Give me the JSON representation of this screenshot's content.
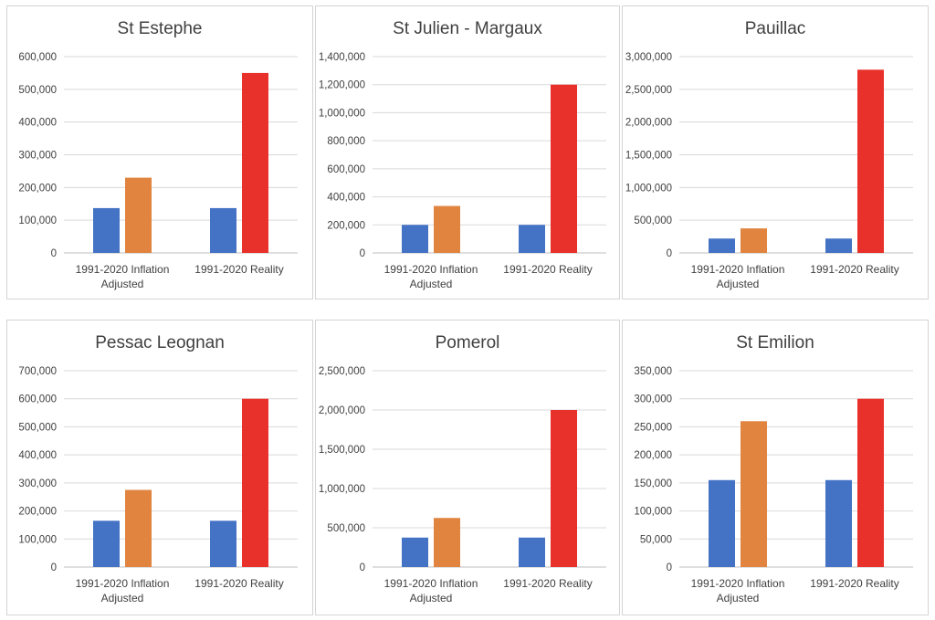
{
  "chart_data": [
    {
      "type": "bar",
      "title": "St Estephe",
      "categories": [
        "1991-2020 Inflation Adjusted",
        "1991-2020 Reality"
      ],
      "category_lines": [
        [
          "1991-2020 Inflation",
          "Adjusted"
        ],
        [
          "1991-2020 Reality"
        ]
      ],
      "ylim": [
        0,
        600000
      ],
      "ytick_step": 100000,
      "yticks": [
        "0",
        "100,000",
        "200,000",
        "300,000",
        "400,000",
        "500,000",
        "600,000"
      ],
      "bars": [
        [
          137000,
          230000
        ],
        [
          137000,
          550000
        ]
      ]
    },
    {
      "type": "bar",
      "title": "St Julien - Margaux",
      "categories": [
        "1991-2020 Inflation Adjusted",
        "1991-2020 Reality"
      ],
      "category_lines": [
        [
          "1991-2020 Inflation",
          "Adjusted"
        ],
        [
          "1991-2020 Reality"
        ]
      ],
      "ylim": [
        0,
        1400000
      ],
      "ytick_step": 200000,
      "yticks": [
        "0",
        "200,000",
        "400,000",
        "600,000",
        "800,000",
        "1,000,000",
        "1,200,000",
        "1,400,000"
      ],
      "bars": [
        [
          200000,
          335000
        ],
        [
          200000,
          1200000
        ]
      ]
    },
    {
      "type": "bar",
      "title": "Pauillac",
      "categories": [
        "1991-2020 Inflation Adjusted",
        "1991-2020 Reality"
      ],
      "category_lines": [
        [
          "1991-2020 Inflation",
          "Adjusted"
        ],
        [
          "1991-2020 Reality"
        ]
      ],
      "ylim": [
        0,
        3000000
      ],
      "ytick_step": 500000,
      "yticks": [
        "0",
        "500,000",
        "1,000,000",
        "1,500,000",
        "2,000,000",
        "2,500,000",
        "3,000,000"
      ],
      "bars": [
        [
          220000,
          375000
        ],
        [
          220000,
          2800000
        ]
      ]
    },
    {
      "type": "bar",
      "title": "Pessac Leognan",
      "categories": [
        "1991-2020 Inflation Adjusted",
        "1991-2020 Reality"
      ],
      "category_lines": [
        [
          "1991-2020 Inflation",
          "Adjusted"
        ],
        [
          "1991-2020 Reality"
        ]
      ],
      "ylim": [
        0,
        700000
      ],
      "ytick_step": 100000,
      "yticks": [
        "0",
        "100,000",
        "200,000",
        "300,000",
        "400,000",
        "500,000",
        "600,000",
        "700,000"
      ],
      "bars": [
        [
          165000,
          275000
        ],
        [
          165000,
          600000
        ]
      ]
    },
    {
      "type": "bar",
      "title": "Pomerol",
      "categories": [
        "1991-2020 Inflation Adjusted",
        "1991-2020 Reality"
      ],
      "category_lines": [
        [
          "1991-2020 Inflation",
          "Adjusted"
        ],
        [
          "1991-2020 Reality"
        ]
      ],
      "ylim": [
        0,
        2500000
      ],
      "ytick_step": 500000,
      "yticks": [
        "0",
        "500,000",
        "1,000,000",
        "1,500,000",
        "2,000,000",
        "2,500,000"
      ],
      "bars": [
        [
          375000,
          625000
        ],
        [
          375000,
          2000000
        ]
      ]
    },
    {
      "type": "bar",
      "title": "St Emilion",
      "categories": [
        "1991-2020 Inflation Adjusted",
        "1991-2020 Reality"
      ],
      "category_lines": [
        [
          "1991-2020 Inflation",
          "Adjusted"
        ],
        [
          "1991-2020 Reality"
        ]
      ],
      "ylim": [
        0,
        350000
      ],
      "ytick_step": 50000,
      "yticks": [
        "0",
        "50,000",
        "100,000",
        "150,000",
        "200,000",
        "250,000",
        "300,000",
        "350,000"
      ],
      "bars": [
        [
          155000,
          260000
        ],
        [
          155000,
          300000
        ]
      ]
    }
  ],
  "colors": {
    "base_bar": "#4472c4",
    "inflation_bar": "#e0843f",
    "reality_bar": "#e8312a"
  }
}
